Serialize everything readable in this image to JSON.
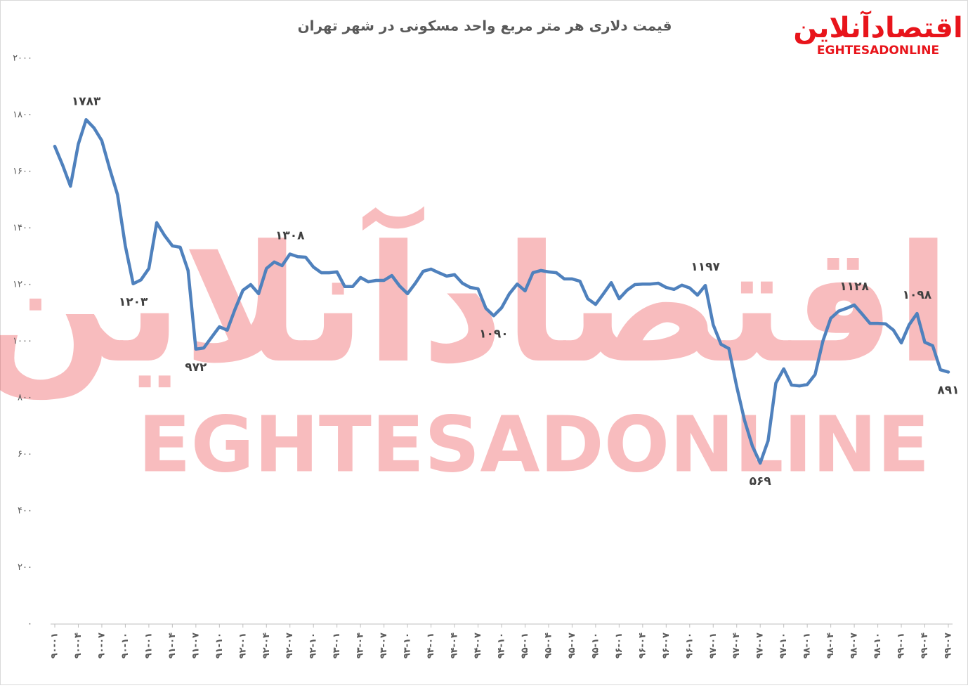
{
  "chart_data": {
    "type": "line",
    "title": "قیمت دلاری هر متر مربع واحد مسکونی در شهر تهران",
    "logo": {
      "name": "اقتصادآنلاین",
      "latin": "EGHTESADONLINE"
    },
    "color": "#4f81bd",
    "categories": [
      "۹۰-۰۱",
      null,
      null,
      "۹۰-۰۴",
      null,
      null,
      "۹۰-۰۷",
      null,
      null,
      "۹۰-۱۰",
      null,
      null,
      "۹۱-۰۱",
      null,
      null,
      "۹۱-۰۴",
      null,
      null,
      "۹۱-۰۷",
      null,
      null,
      "۹۱-۱۰",
      null,
      null,
      "۹۲-۰۱",
      null,
      null,
      "۹۲-۰۴",
      null,
      null,
      "۹۲-۰۷",
      null,
      null,
      "۹۲-۱۰",
      null,
      null,
      "۹۳-۰۱",
      null,
      null,
      "۹۳-۰۴",
      null,
      null,
      "۹۳-۰۷",
      null,
      null,
      "۹۳-۱۰",
      null,
      null,
      "۹۴-۰۱",
      null,
      null,
      "۹۴-۰۴",
      null,
      null,
      "۹۴-۰۷",
      null,
      null,
      "۹۴-۱۰",
      null,
      null,
      "۹۵-۰۱",
      null,
      null,
      "۹۵-۰۴",
      null,
      null,
      "۹۵-۰۷",
      null,
      null,
      "۹۵-۱۰",
      null,
      null,
      "۹۶-۰۱",
      null,
      null,
      "۹۶-۰۴",
      null,
      null,
      "۹۶-۰۷",
      null,
      null,
      "۹۶-۱۰",
      null,
      null,
      "۹۷-۰۱",
      null,
      null,
      "۹۷-۰۴",
      null,
      null,
      "۹۷-۰۷",
      null,
      null,
      "۹۷-۱۰",
      null,
      null,
      "۹۸-۰۱",
      null,
      null,
      "۹۸-۰۴",
      null,
      null,
      "۹۸-۰۷",
      null,
      null,
      "۹۸-۱۰",
      null,
      null,
      "۹۹-۰۱",
      null,
      null,
      "۹۹-۰۴",
      null,
      null,
      "۹۹-۰۷"
    ],
    "values": [
      1689,
      1622,
      1548,
      1697,
      1783,
      1754,
      1709,
      1610,
      1518,
      1337,
      1203,
      1217,
      1257,
      1419,
      1374,
      1337,
      1332,
      1250,
      972,
      976,
      1014,
      1051,
      1039,
      1113,
      1180,
      1200,
      1168,
      1257,
      1280,
      1267,
      1308,
      1299,
      1297,
      1262,
      1242,
      1242,
      1245,
      1193,
      1193,
      1225,
      1210,
      1215,
      1215,
      1232,
      1195,
      1168,
      1205,
      1247,
      1255,
      1242,
      1230,
      1235,
      1205,
      1190,
      1185,
      1116,
      1090,
      1118,
      1168,
      1202,
      1178,
      1242,
      1250,
      1245,
      1242,
      1220,
      1220,
      1212,
      1150,
      1130,
      1168,
      1207,
      1150,
      1180,
      1200,
      1202,
      1202,
      1205,
      1190,
      1183,
      1198,
      1188,
      1163,
      1197,
      1058,
      989,
      974,
      840,
      720,
      629,
      569,
      648,
      852,
      902,
      845,
      842,
      847,
      882,
      1001,
      1081,
      1106,
      1116,
      1128,
      1096,
      1063,
      1063,
      1061,
      1039,
      994,
      1058,
      1098,
      996,
      984,
      899,
      891
    ],
    "value_labels": [
      null,
      null,
      null,
      null,
      "۱۷۸۳",
      null,
      null,
      null,
      null,
      null,
      "۱۲۰۳",
      null,
      null,
      null,
      null,
      null,
      null,
      null,
      "۹۷۲",
      null,
      null,
      null,
      null,
      null,
      null,
      null,
      null,
      null,
      null,
      null,
      "۱۳۰۸",
      null,
      null,
      null,
      null,
      null,
      null,
      null,
      null,
      null,
      null,
      null,
      null,
      null,
      null,
      null,
      null,
      null,
      null,
      null,
      null,
      null,
      null,
      null,
      null,
      null,
      "۱۰۹۰",
      null,
      null,
      null,
      null,
      null,
      null,
      null,
      null,
      null,
      null,
      null,
      null,
      null,
      null,
      null,
      null,
      null,
      null,
      null,
      null,
      null,
      null,
      null,
      null,
      null,
      null,
      "۱۱۹۷",
      null,
      null,
      null,
      null,
      null,
      null,
      "۵۶۹",
      null,
      null,
      null,
      null,
      null,
      null,
      null,
      null,
      null,
      null,
      null,
      "۱۱۲۸",
      null,
      null,
      null,
      null,
      null,
      null,
      null,
      "۱۰۹۸",
      null,
      null,
      null,
      "۸۹۱"
    ],
    "ylim": [
      0,
      2000
    ],
    "yticks": [
      {
        "value": 0,
        "label": "۰"
      },
      {
        "value": 200,
        "label": "۲۰۰"
      },
      {
        "value": 400,
        "label": "۴۰۰"
      },
      {
        "value": 600,
        "label": "۶۰۰"
      },
      {
        "value": 800,
        "label": "۸۰۰"
      },
      {
        "value": 1000,
        "label": "۱۰۰۰"
      },
      {
        "value": 1200,
        "label": "۱۲۰۰"
      },
      {
        "value": 1400,
        "label": "۱۴۰۰"
      },
      {
        "value": 1600,
        "label": "۱۶۰۰"
      },
      {
        "value": 1800,
        "label": "۱۸۰۰"
      },
      {
        "value": 2000,
        "label": "۲۰۰۰"
      }
    ],
    "grid": false
  }
}
